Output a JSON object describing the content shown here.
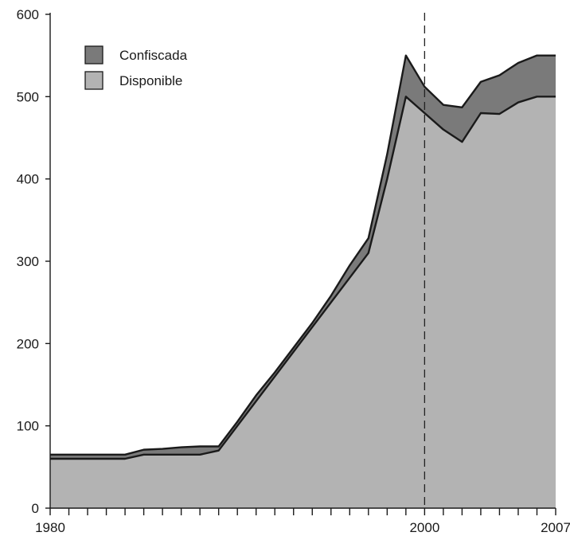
{
  "chart_data": {
    "type": "area",
    "stacked": true,
    "title": "",
    "xlabel": "",
    "ylabel": "",
    "xlim": [
      1980,
      2007
    ],
    "ylim": [
      0,
      600
    ],
    "x_tick_labels": [
      1980,
      2000,
      2007
    ],
    "y_ticks": [
      0,
      100,
      200,
      300,
      400,
      500,
      600
    ],
    "reference_line": {
      "x": 2000,
      "style": "dashed"
    },
    "grid": false,
    "legend": {
      "placement": "top-left",
      "entries": [
        {
          "label": "Confiscada",
          "color": "#7a7a7a"
        },
        {
          "label": "Disponible",
          "color": "#b3b3b3"
        }
      ]
    },
    "x": [
      1980,
      1981,
      1982,
      1983,
      1984,
      1985,
      1986,
      1987,
      1988,
      1989,
      1990,
      1991,
      1992,
      1993,
      1994,
      1995,
      1996,
      1997,
      1998,
      1999,
      2000,
      2001,
      2002,
      2003,
      2004,
      2005,
      2006,
      2007
    ],
    "series": [
      {
        "name": "Disponible",
        "color": "#b3b3b3",
        "values": [
          60,
          60,
          60,
          60,
          60,
          65,
          65,
          65,
          65,
          70,
          100,
          130,
          160,
          190,
          220,
          250,
          280,
          310,
          400,
          500,
          480,
          460,
          445,
          480,
          479,
          493,
          500,
          500
        ]
      },
      {
        "name": "Confiscada",
        "color": "#7a7a7a",
        "values": [
          5,
          5,
          5,
          5,
          5,
          6,
          7,
          9,
          10,
          5,
          5,
          7,
          5,
          5,
          5,
          8,
          15,
          18,
          30,
          50,
          32,
          30,
          42,
          38,
          47,
          48,
          50,
          50
        ]
      }
    ]
  }
}
